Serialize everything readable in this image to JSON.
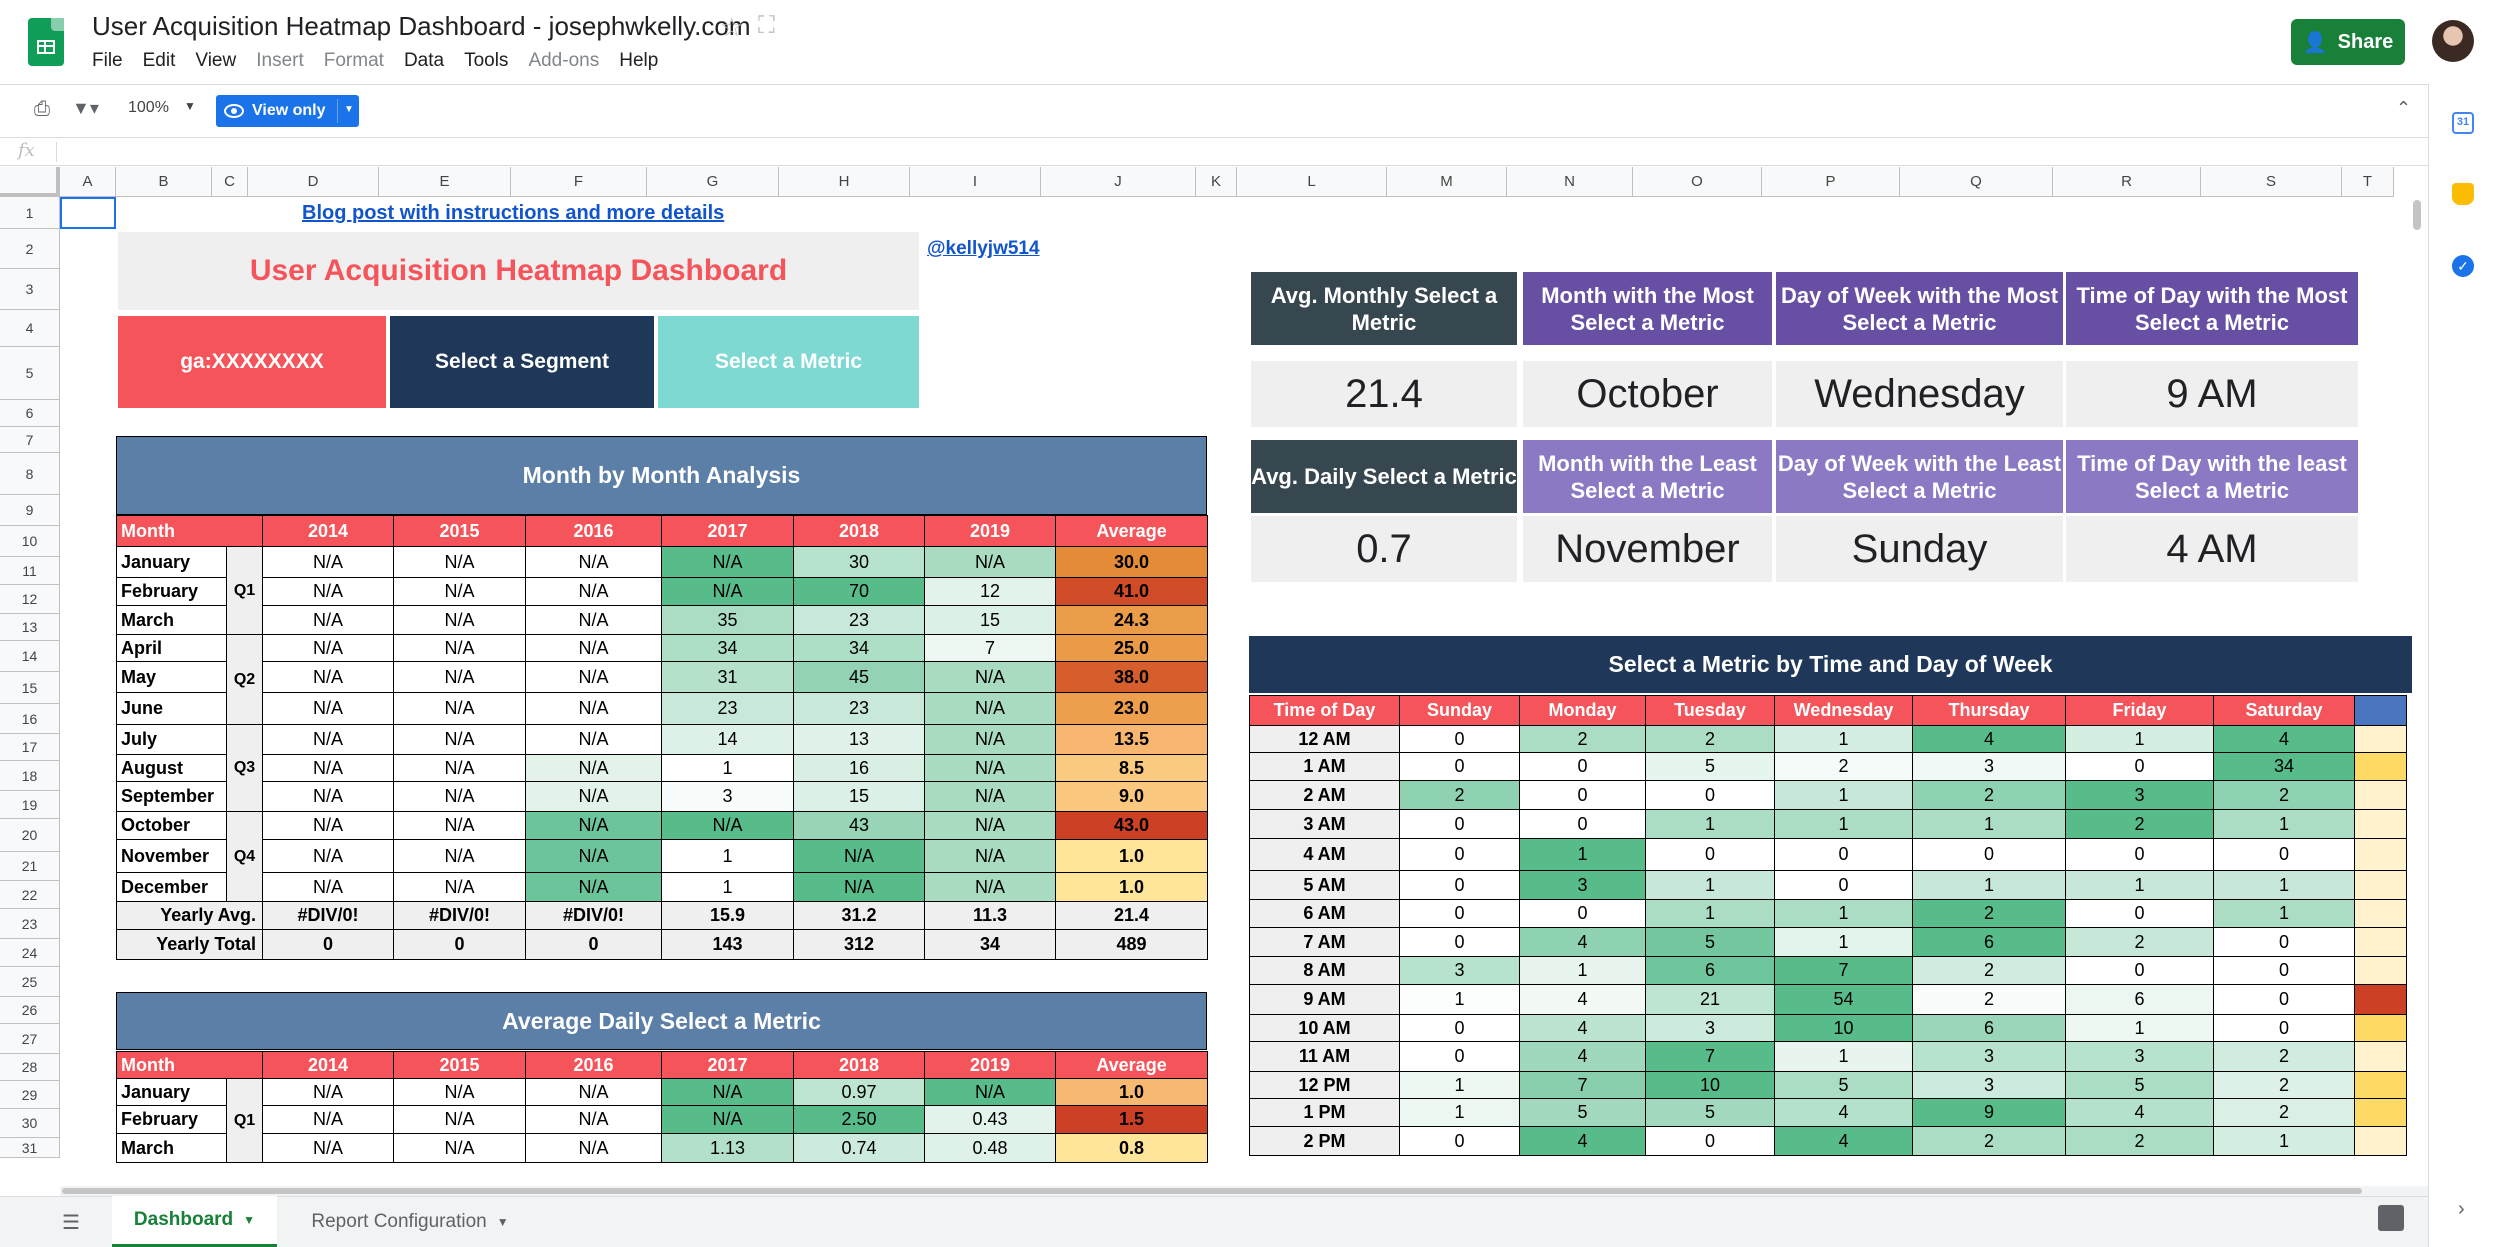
{
  "header": {
    "title": "User Acquisition Heatmap Dashboard - josephwkelly.com",
    "menu": [
      "File",
      "Edit",
      "View",
      "Insert",
      "Format",
      "Data",
      "Tools",
      "Add-ons",
      "Help"
    ],
    "disabled_menu": [
      "Insert",
      "Format",
      "Add-ons"
    ],
    "share": "Share"
  },
  "toolbar": {
    "zoom": "100%",
    "view_only": "View only"
  },
  "formula": {
    "fx": "fx"
  },
  "columns": [
    {
      "l": "A",
      "w": 56
    },
    {
      "l": "B",
      "w": 96
    },
    {
      "l": "C",
      "w": 36
    },
    {
      "l": "D",
      "w": 131
    },
    {
      "l": "E",
      "w": 132
    },
    {
      "l": "F",
      "w": 136
    },
    {
      "l": "G",
      "w": 132
    },
    {
      "l": "H",
      "w": 131
    },
    {
      "l": "I",
      "w": 131
    },
    {
      "l": "J",
      "w": 155
    },
    {
      "l": "K",
      "w": 41
    },
    {
      "l": "L",
      "w": 150
    },
    {
      "l": "M",
      "w": 120
    },
    {
      "l": "N",
      "w": 126
    },
    {
      "l": "O",
      "w": 129
    },
    {
      "l": "P",
      "w": 138
    },
    {
      "l": "Q",
      "w": 153
    },
    {
      "l": "R",
      "w": 148
    },
    {
      "l": "S",
      "w": 141
    },
    {
      "l": "T",
      "w": 52
    }
  ],
  "rows": [
    {
      "n": "1",
      "h": 32
    },
    {
      "n": "2",
      "h": 40
    },
    {
      "n": "3",
      "h": 41
    },
    {
      "n": "4",
      "h": 37
    },
    {
      "n": "5",
      "h": 53
    },
    {
      "n": "6",
      "h": 27
    },
    {
      "n": "7",
      "h": 26
    },
    {
      "n": "8",
      "h": 42
    },
    {
      "n": "9",
      "h": 31
    },
    {
      "n": "10",
      "h": 31
    },
    {
      "n": "11",
      "h": 28
    },
    {
      "n": "12",
      "h": 29
    },
    {
      "n": "13",
      "h": 27
    },
    {
      "n": "14",
      "h": 31
    },
    {
      "n": "15",
      "h": 32
    },
    {
      "n": "16",
      "h": 30
    },
    {
      "n": "17",
      "h": 27
    },
    {
      "n": "18",
      "h": 30
    },
    {
      "n": "19",
      "h": 28
    },
    {
      "n": "20",
      "h": 33
    },
    {
      "n": "21",
      "h": 29
    },
    {
      "n": "22",
      "h": 28
    },
    {
      "n": "23",
      "h": 30
    },
    {
      "n": "24",
      "h": 28
    },
    {
      "n": "25",
      "h": 30
    },
    {
      "n": "26",
      "h": 27
    },
    {
      "n": "27",
      "h": 30
    },
    {
      "n": "28",
      "h": 27
    },
    {
      "n": "29",
      "h": 28
    },
    {
      "n": "30",
      "h": 29
    },
    {
      "n": "31",
      "h": 20
    }
  ],
  "links": {
    "blog": "Blog post with instructions and more details",
    "twitter": "@kellyjw514"
  },
  "dashboard": {
    "title": "User Acquisition Heatmap Dashboard",
    "ga": "ga:XXXXXXXX",
    "segment": "Select a Segment",
    "metric": "Select a Metric"
  },
  "kpi": {
    "headers": [
      "Avg. Monthly Select a Metric",
      "Month with the Most Select a Metric",
      "Day of Week with the Most Select a Metric",
      "Time of Day with the Most Select a Metric"
    ],
    "values": [
      "21.4",
      "October",
      "Wednesday",
      "9 AM"
    ],
    "headers2": [
      "Avg. Daily Select a Metric",
      "Month with the Least Select a Metric",
      "Day of Week with the Least Select a Metric",
      "Time of Day with the least Select a Metric"
    ],
    "values2": [
      "0.7",
      "November",
      "Sunday",
      "4 AM"
    ]
  },
  "monthly": {
    "title": "Month by Month Analysis",
    "headers": [
      "Month",
      "2014",
      "2015",
      "2016",
      "2017",
      "2018",
      "2019",
      "Average"
    ],
    "quarters": [
      "Q1",
      "Q2",
      "Q3",
      "Q4"
    ],
    "rows": [
      [
        "January",
        "N/A",
        "N/A",
        "N/A",
        "N/A",
        "30",
        "N/A",
        "30.0"
      ],
      [
        "February",
        "N/A",
        "N/A",
        "N/A",
        "N/A",
        "70",
        "12",
        "41.0"
      ],
      [
        "March",
        "N/A",
        "N/A",
        "N/A",
        "35",
        "23",
        "15",
        "24.3"
      ],
      [
        "April",
        "N/A",
        "N/A",
        "N/A",
        "34",
        "34",
        "7",
        "25.0"
      ],
      [
        "May",
        "N/A",
        "N/A",
        "N/A",
        "31",
        "45",
        "N/A",
        "38.0"
      ],
      [
        "June",
        "N/A",
        "N/A",
        "N/A",
        "23",
        "23",
        "N/A",
        "23.0"
      ],
      [
        "July",
        "N/A",
        "N/A",
        "N/A",
        "14",
        "13",
        "N/A",
        "13.5"
      ],
      [
        "August",
        "N/A",
        "N/A",
        "N/A",
        "1",
        "16",
        "N/A",
        "8.5"
      ],
      [
        "September",
        "N/A",
        "N/A",
        "N/A",
        "3",
        "15",
        "N/A",
        "9.0"
      ],
      [
        "October",
        "N/A",
        "N/A",
        "N/A",
        "N/A",
        "43",
        "N/A",
        "43.0"
      ],
      [
        "November",
        "N/A",
        "N/A",
        "N/A",
        "1",
        "N/A",
        "N/A",
        "1.0"
      ],
      [
        "December",
        "N/A",
        "N/A",
        "N/A",
        "1",
        "N/A",
        "N/A",
        "1.0"
      ]
    ],
    "yearly_avg": [
      "Yearly Avg.",
      "#DIV/0!",
      "#DIV/0!",
      "#DIV/0!",
      "15.9",
      "31.2",
      "11.3",
      "21.4"
    ],
    "yearly_total": [
      "Yearly Total",
      "0",
      "0",
      "0",
      "143",
      "312",
      "34",
      "489"
    ]
  },
  "daily": {
    "title": "Average Daily Select a Metric",
    "headers": [
      "Month",
      "2014",
      "2015",
      "2016",
      "2017",
      "2018",
      "2019",
      "Average"
    ],
    "quarter": "Q1",
    "rows": [
      [
        "January",
        "N/A",
        "N/A",
        "N/A",
        "N/A",
        "0.97",
        "N/A",
        "1.0"
      ],
      [
        "February",
        "N/A",
        "N/A",
        "N/A",
        "N/A",
        "2.50",
        "0.43",
        "1.5"
      ],
      [
        "March",
        "N/A",
        "N/A",
        "N/A",
        "1.13",
        "0.74",
        "0.48",
        "0.8"
      ]
    ]
  },
  "timeday": {
    "title": "Select a Metric by Time and Day of Week",
    "headers": [
      "Time of Day",
      "Sunday",
      "Monday",
      "Tuesday",
      "Wednesday",
      "Thursday",
      "Friday",
      "Saturday",
      ""
    ],
    "rows": [
      [
        "12 AM",
        "0",
        "2",
        "2",
        "1",
        "4",
        "1",
        "4"
      ],
      [
        "1 AM",
        "0",
        "0",
        "5",
        "2",
        "3",
        "0",
        "34"
      ],
      [
        "2 AM",
        "2",
        "0",
        "0",
        "1",
        "2",
        "3",
        "2"
      ],
      [
        "3 AM",
        "0",
        "0",
        "1",
        "1",
        "1",
        "2",
        "1"
      ],
      [
        "4 AM",
        "0",
        "1",
        "0",
        "0",
        "0",
        "0",
        "0"
      ],
      [
        "5 AM",
        "0",
        "3",
        "1",
        "0",
        "1",
        "1",
        "1"
      ],
      [
        "6 AM",
        "0",
        "0",
        "1",
        "1",
        "2",
        "0",
        "1"
      ],
      [
        "7 AM",
        "0",
        "4",
        "5",
        "1",
        "6",
        "2",
        "0"
      ],
      [
        "8 AM",
        "3",
        "1",
        "6",
        "7",
        "2",
        "0",
        "0"
      ],
      [
        "9 AM",
        "1",
        "4",
        "21",
        "54",
        "2",
        "6",
        "0"
      ],
      [
        "10 AM",
        "0",
        "4",
        "3",
        "10",
        "6",
        "1",
        "0"
      ],
      [
        "11 AM",
        "0",
        "4",
        "7",
        "1",
        "3",
        "3",
        "2"
      ],
      [
        "12 PM",
        "1",
        "7",
        "10",
        "5",
        "3",
        "5",
        "2"
      ],
      [
        "1 PM",
        "1",
        "5",
        "5",
        "4",
        "9",
        "4",
        "2"
      ],
      [
        "2 PM",
        "0",
        "4",
        "0",
        "4",
        "2",
        "2",
        "1"
      ]
    ]
  },
  "tabs": {
    "dashboard": "Dashboard",
    "report": "Report Configuration"
  },
  "colors": {
    "accent": "#f4545a",
    "navy": "#1f3758",
    "steel": "#5b7fa6",
    "kpi_dark": "#37474f",
    "kpi_purple": "#6750a4",
    "kpi_light_purple": "#8b79c4",
    "share_green": "#188038"
  }
}
